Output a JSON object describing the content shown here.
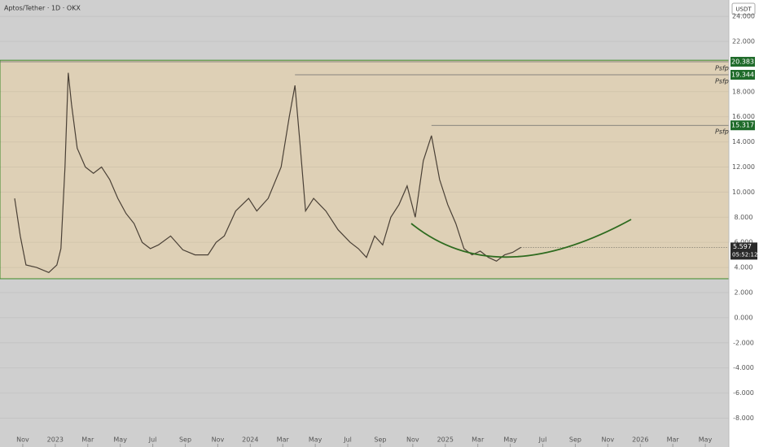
{
  "chart_data": {
    "type": "line",
    "title": "Aptos/Tether · 1D · OKX",
    "currency": "USDT",
    "color": "#4a4036",
    "xlim": [
      -1.4,
      43.45
    ],
    "ylim": [
      -10.3,
      25.3
    ],
    "xticks": [
      {
        "value": 0,
        "label": "Nov"
      },
      {
        "value": 2,
        "label": "2023"
      },
      {
        "value": 4,
        "label": "Mar"
      },
      {
        "value": 6,
        "label": "May"
      },
      {
        "value": 8,
        "label": "Jul"
      },
      {
        "value": 10,
        "label": "Sep"
      },
      {
        "value": 12,
        "label": "Nov"
      },
      {
        "value": 14,
        "label": "2024"
      },
      {
        "value": 16,
        "label": "Mar"
      },
      {
        "value": 18,
        "label": "May"
      },
      {
        "value": 20,
        "label": "Jul"
      },
      {
        "value": 22,
        "label": "Sep"
      },
      {
        "value": 24,
        "label": "Nov"
      },
      {
        "value": 26,
        "label": "2025"
      },
      {
        "value": 28,
        "label": "Mar"
      },
      {
        "value": 30,
        "label": "May"
      },
      {
        "value": 32,
        "label": "Jul"
      },
      {
        "value": 34,
        "label": "Sep"
      },
      {
        "value": 36,
        "label": "Nov"
      },
      {
        "value": 38,
        "label": "2026"
      },
      {
        "value": 40,
        "label": "Mar"
      },
      {
        "value": 42,
        "label": "May"
      }
    ],
    "yticks": [
      {
        "value": -8,
        "label": "-8.000"
      },
      {
        "value": -6,
        "label": "-6.000"
      },
      {
        "value": -4,
        "label": "-4.000"
      },
      {
        "value": -2,
        "label": "-2.000"
      },
      {
        "value": 0,
        "label": "0.000"
      },
      {
        "value": 2,
        "label": "2.000"
      },
      {
        "value": 4,
        "label": "4.000"
      },
      {
        "value": 6,
        "label": "6.000"
      },
      {
        "value": 8,
        "label": "8.000"
      },
      {
        "value": 10,
        "label": "10.000"
      },
      {
        "value": 12,
        "label": "12.000"
      },
      {
        "value": 14,
        "label": "14.000"
      },
      {
        "value": 16,
        "label": "16.000"
      },
      {
        "value": 18,
        "label": "18.000"
      },
      {
        "value": 22,
        "label": "22.000"
      },
      {
        "value": 24,
        "label": "24.000"
      }
    ],
    "x": [
      -0.5,
      -0.15,
      0.2,
      0.85,
      1.6,
      2.1,
      2.35,
      2.6,
      2.8,
      3.0,
      3.35,
      3.85,
      4.35,
      4.85,
      5.35,
      5.85,
      6.35,
      6.85,
      7.35,
      7.85,
      8.35,
      9.1,
      9.85,
      10.6,
      11.4,
      11.9,
      12.4,
      13.1,
      13.9,
      14.4,
      15.1,
      15.9,
      16.4,
      16.75,
      17.05,
      17.4,
      17.9,
      18.65,
      19.4,
      20.15,
      20.65,
      21.15,
      21.65,
      22.15,
      22.65,
      23.15,
      23.65,
      24.15,
      24.65,
      25.15,
      25.65,
      26.15,
      26.65,
      27.15,
      27.65,
      28.15,
      28.65,
      29.15,
      29.65,
      30.15,
      30.65
    ],
    "values": [
      9.5,
      6.5,
      4.2,
      4.0,
      3.6,
      4.2,
      5.5,
      12,
      19.5,
      17,
      13.5,
      12,
      11.5,
      12,
      11,
      9.5,
      8.3,
      7.5,
      6.0,
      5.5,
      5.8,
      6.5,
      5.4,
      5.0,
      5.0,
      6.0,
      6.5,
      8.5,
      9.5,
      8.5,
      9.5,
      12,
      16,
      18.5,
      14,
      8.5,
      9.5,
      8.5,
      7.0,
      6.0,
      5.5,
      4.8,
      6.5,
      5.8,
      8.0,
      9.0,
      10.5,
      8.0,
      12.5,
      14.5,
      11.0,
      9.0,
      7.5,
      5.5,
      5.0,
      5.3,
      4.8,
      4.5,
      5.0,
      5.2,
      5.6
    ],
    "range_box": [
      3.1,
      20.5
    ],
    "levels": [
      {
        "value": 20.383,
        "label": "20.383",
        "note": "Psfp",
        "x_start": -1.4
      },
      {
        "value": 19.344,
        "label": "19.344",
        "note": "Psfp",
        "x_start": 16.75
      },
      {
        "value": 15.317,
        "label": "15.317",
        "note": "Psfp",
        "x_start": 25.15
      }
    ],
    "last_price": {
      "value": 5.597,
      "label": "5.597",
      "countdown": "05:52:12"
    }
  }
}
